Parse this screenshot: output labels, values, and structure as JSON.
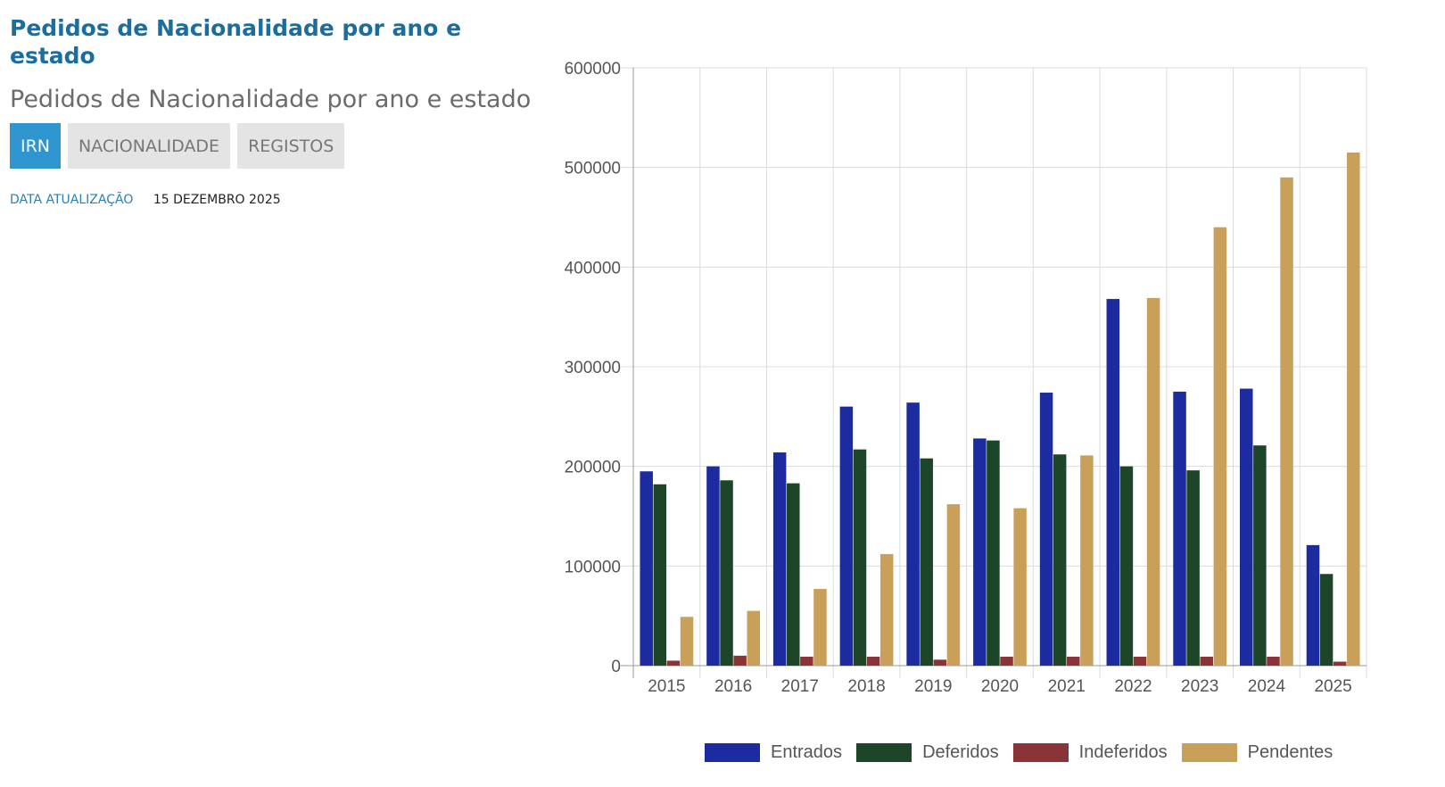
{
  "page": {
    "heading": "Pedidos de Nacionalidade por ano e estado",
    "subheading": "Pedidos de Nacionalidade por ano e estado",
    "tabs": [
      {
        "label": "IRN",
        "active": true
      },
      {
        "label": "NACIONALIDADE",
        "active": false
      },
      {
        "label": "REGISTOS",
        "active": false
      }
    ],
    "update_label": "DATA ATUALIZAÇÃO",
    "update_value": "15 DEZEMBRO 2025"
  },
  "chart_data": {
    "type": "bar",
    "categories": [
      "2015",
      "2016",
      "2017",
      "2018",
      "2019",
      "2020",
      "2021",
      "2022",
      "2023",
      "2024",
      "2025"
    ],
    "series": [
      {
        "name": "Entrados",
        "color": "#1c2ba0",
        "values": [
          195000,
          200000,
          214000,
          260000,
          264000,
          228000,
          274000,
          368000,
          275000,
          278000,
          121000
        ]
      },
      {
        "name": "Deferidos",
        "color": "#1d4528",
        "values": [
          182000,
          186000,
          183000,
          217000,
          208000,
          226000,
          212000,
          200000,
          196000,
          221000,
          92000
        ]
      },
      {
        "name": "Indeferidos",
        "color": "#8b3438",
        "values": [
          5000,
          10000,
          9000,
          9000,
          6000,
          9000,
          9000,
          9000,
          9000,
          9000,
          4000
        ]
      },
      {
        "name": "Pendentes",
        "color": "#c9a05a",
        "values": [
          49000,
          55000,
          77000,
          112000,
          162000,
          158000,
          211000,
          369000,
          440000,
          490000,
          515000
        ]
      }
    ],
    "yticks": [
      "0",
      "100000",
      "200000",
      "300000",
      "400000",
      "500000",
      "600000"
    ],
    "ylim": [
      0,
      600000
    ],
    "grid": true,
    "legend_position": "bottom"
  }
}
